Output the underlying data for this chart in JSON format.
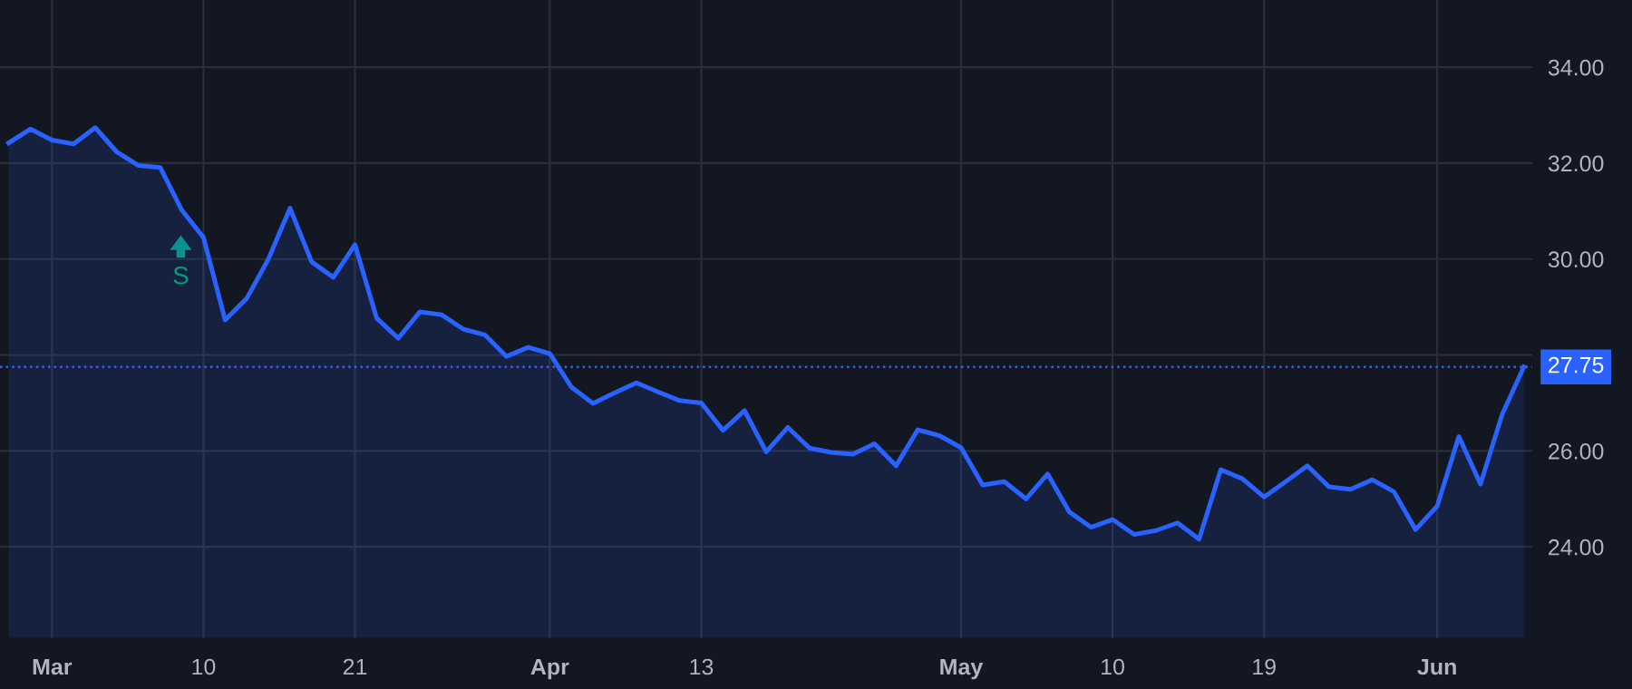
{
  "chart_data": {
    "type": "area",
    "categories": [
      null,
      null,
      "Mar",
      null,
      null,
      null,
      null,
      null,
      null,
      "10",
      null,
      null,
      null,
      null,
      null,
      null,
      "21",
      null,
      null,
      null,
      null,
      null,
      null,
      null,
      null,
      "Apr",
      null,
      null,
      null,
      null,
      null,
      null,
      "13",
      null,
      null,
      null,
      null,
      null,
      null,
      null,
      null,
      null,
      null,
      null,
      "May",
      null,
      null,
      null,
      null,
      null,
      null,
      "10",
      null,
      null,
      null,
      null,
      null,
      null,
      "19",
      null,
      null,
      null,
      null,
      null,
      null,
      null,
      "Jun",
      null,
      null,
      null,
      null
    ],
    "series": [
      {
        "color": "#2962ff",
        "values": [
          32.42,
          32.71,
          32.48,
          32.4,
          32.74,
          32.23,
          31.95,
          31.91,
          31.02,
          30.45,
          28.73,
          29.18,
          30.0,
          31.06,
          29.94,
          29.62,
          30.3,
          28.77,
          28.35,
          28.9,
          28.84,
          28.54,
          28.42,
          27.97,
          28.16,
          28.03,
          27.33,
          26.99,
          27.21,
          27.42,
          27.23,
          27.05,
          27.0,
          26.43,
          26.84,
          25.98,
          26.49,
          26.06,
          25.97,
          25.93,
          26.15,
          25.69,
          26.44,
          26.32,
          26.07,
          25.29,
          25.36,
          25.0,
          25.52,
          24.73,
          24.41,
          24.57,
          24.26,
          24.34,
          24.5,
          24.16,
          25.61,
          25.42,
          25.04,
          25.36,
          25.69,
          25.25,
          25.2,
          25.4,
          25.15,
          24.36,
          24.85,
          26.3,
          25.31,
          26.76,
          27.75
        ]
      }
    ],
    "ylim": [
      22.1,
      35.4
    ],
    "yticks": [
      {
        "value": 24,
        "label": "24.00"
      },
      {
        "value": 26,
        "label": "26.00"
      },
      {
        "value": 28,
        "label": null
      },
      {
        "value": 30,
        "label": "30.00"
      },
      {
        "value": 32,
        "label": "32.00"
      },
      {
        "value": 34,
        "label": "34.00"
      }
    ],
    "ref_lines": [
      {
        "axis": "y",
        "value": 27.75,
        "label": "27.75",
        "color": "#2962ff",
        "line_style": "dotted"
      }
    ],
    "annotations": [
      "S"
    ],
    "grid": true,
    "legend": false
  }
}
